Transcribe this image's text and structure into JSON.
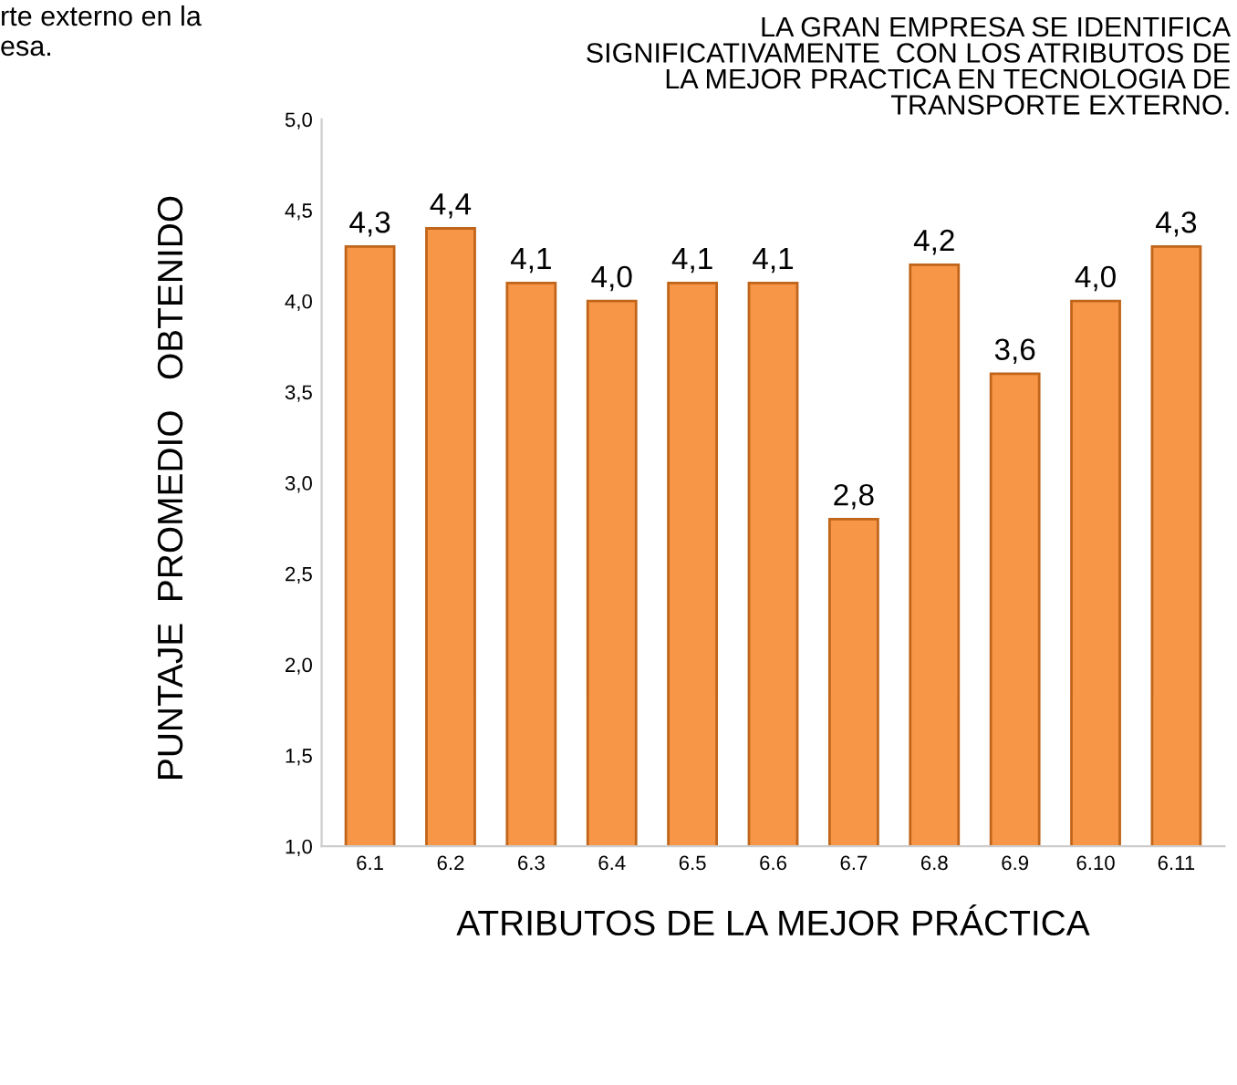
{
  "chart_data": {
    "type": "bar",
    "title": "LA GRAN EMPRESA SE IDENTIFICA\nSIGNIFICATIVAMENTE  CON LOS ATRIBUTOS DE\nLA MEJOR PRACTICA EN TECNOLOGIA DE\nTRANSPORTE EXTERNO.",
    "xlabel": "ATRIBUTOS DE LA MEJOR PRÁCTICA",
    "ylabel": "PUNTAJE  PROMEDIO   OBTENIDO",
    "annotations": [
      "rte externo en la\nesa."
    ],
    "categories": [
      "6.1",
      "6.2",
      "6.3",
      "6.4",
      "6.5",
      "6.6",
      "6.7",
      "6.8",
      "6.9",
      "6.10",
      "6.11"
    ],
    "values": [
      4.3,
      4.4,
      4.1,
      4.0,
      4.1,
      4.1,
      2.8,
      4.2,
      3.6,
      4.0,
      4.3
    ],
    "value_labels": [
      "4,3",
      "4,4",
      "4,1",
      "4,0",
      "4,1",
      "4,1",
      "2,8",
      "4,2",
      "3,6",
      "4,0",
      "4,3"
    ],
    "color": "#f79646",
    "ylim": [
      1,
      5
    ],
    "yticks": [
      {
        "value": 1,
        "label": "1,0"
      },
      {
        "value": 1.5,
        "label": "1,5"
      },
      {
        "value": 2,
        "label": "2,0"
      },
      {
        "value": 2.5,
        "label": "2,5"
      },
      {
        "value": 3,
        "label": "3,0"
      },
      {
        "value": 3.5,
        "label": "3,5"
      },
      {
        "value": 4,
        "label": "4,0"
      },
      {
        "value": 4.5,
        "label": "4,5"
      },
      {
        "value": 5,
        "label": "5,0"
      }
    ],
    "grid": false,
    "legend": false
  }
}
